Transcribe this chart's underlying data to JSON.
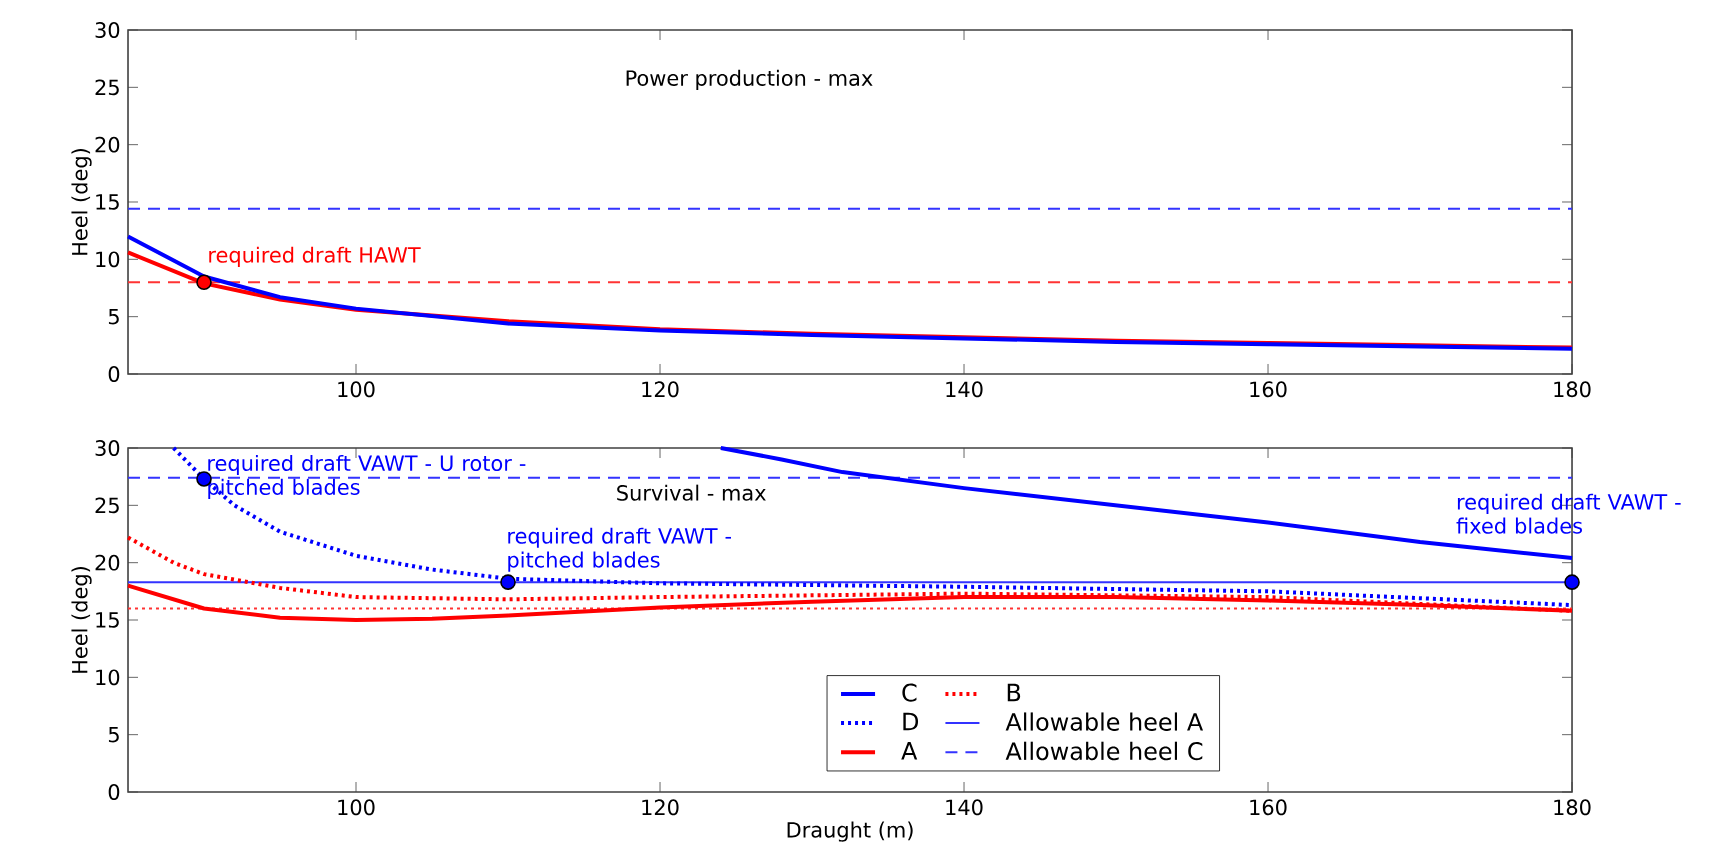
{
  "chart_data": [
    {
      "type": "line",
      "title": "Power production - max",
      "ylabel": "Heel (deg)",
      "xlim": [
        85,
        180
      ],
      "xticks": [
        100,
        120,
        140,
        160,
        180
      ],
      "ylim": [
        0,
        30
      ],
      "yticks": [
        0,
        5,
        10,
        15,
        20,
        25,
        30
      ],
      "grid": false,
      "legend": false,
      "series": [
        {
          "color": "#ff0000",
          "line_style": "solid",
          "x": [
            85,
            90,
            95,
            100,
            110,
            120,
            130,
            140,
            150,
            160,
            170,
            180
          ],
          "values": [
            10.6,
            7.9,
            6.5,
            5.6,
            4.6,
            3.9,
            3.5,
            3.2,
            2.9,
            2.7,
            2.5,
            2.3
          ]
        },
        {
          "color": "#0000ff",
          "line_style": "solid",
          "x": [
            85,
            90,
            95,
            100,
            110,
            120,
            130,
            140,
            150,
            160,
            170,
            180
          ],
          "values": [
            12,
            8.5,
            6.7,
            5.7,
            4.4,
            3.8,
            3.4,
            3.1,
            2.8,
            2.6,
            2.4,
            2.2
          ]
        },
        {
          "type": "scatter",
          "marker": "circle",
          "color": "#ff0000",
          "x": [
            90
          ],
          "values": [
            8
          ]
        }
      ],
      "ref_lines": [
        {
          "axis": "y",
          "value": 14.4,
          "color": "#3333ff",
          "line_style": "dashed"
        },
        {
          "axis": "y",
          "value": 8,
          "color": "#ff3333",
          "line_style": "dashed"
        }
      ],
      "annotations": [
        {
          "text": "required draft HAWT",
          "x": 90,
          "y": 8
        }
      ]
    },
    {
      "type": "line",
      "title": "Survival - max",
      "xlabel": "Draught (m)",
      "ylabel": "Heel (deg)",
      "xlim": [
        85,
        180
      ],
      "xticks": [
        100,
        120,
        140,
        160,
        180
      ],
      "ylim": [
        0,
        30
      ],
      "yticks": [
        0,
        5,
        10,
        15,
        20,
        25,
        30
      ],
      "grid": false,
      "legend": "bottom",
      "series": [
        {
          "name": "C",
          "color": "#0000ff",
          "line_style": "solid",
          "x": [
            124,
            128,
            132,
            140,
            150,
            160,
            170,
            180
          ],
          "values": [
            30,
            29,
            27.9,
            26.5,
            25,
            23.5,
            21.8,
            20.4
          ]
        },
        {
          "name": "D",
          "color": "#0000ff",
          "line_style": "dotted",
          "x": [
            88,
            90,
            92,
            95,
            100,
            105,
            110,
            120,
            140,
            160,
            180
          ],
          "values": [
            30,
            27.3,
            25,
            22.7,
            20.6,
            19.4,
            18.6,
            18.2,
            17.9,
            17.5,
            16.3
          ]
        },
        {
          "name": "A",
          "color": "#ff0000",
          "line_style": "solid",
          "x": [
            85,
            90,
            95,
            100,
            105,
            110,
            120,
            130,
            140,
            150,
            160,
            170,
            180
          ],
          "values": [
            18,
            16,
            15.2,
            15,
            15.1,
            15.4,
            16.1,
            16.6,
            17,
            17,
            16.7,
            16.3,
            15.8
          ]
        },
        {
          "name": "B",
          "color": "#ff0000",
          "line_style": "dotted",
          "x": [
            85,
            88,
            90,
            95,
            100,
            110,
            120,
            140,
            160,
            180
          ],
          "values": [
            22.2,
            20,
            19,
            17.8,
            17,
            16.8,
            17,
            17.3,
            17,
            15.8
          ]
        },
        {
          "type": "scatter",
          "marker": "circle",
          "color": "#0000ff",
          "x": [
            90,
            110,
            180
          ],
          "values": [
            27.3,
            18.3,
            18.3
          ]
        }
      ],
      "ref_lines": [
        {
          "axis": "y",
          "value": 18.3,
          "label": "Allowable heel A",
          "color": "#3333ff",
          "line_style": "solid"
        },
        {
          "axis": "y",
          "value": 27.4,
          "label": "Allowable heel C",
          "color": "#3333ff",
          "line_style": "dashed"
        },
        {
          "axis": "y",
          "value": 16,
          "color": "#ff3333",
          "line_style": "dotted"
        }
      ],
      "annotations": [
        {
          "text": "required draft VAWT - U rotor - pitched blades",
          "x": 90,
          "y": 27.3
        },
        {
          "text": "required draft VAWT - pitched blades",
          "x": 110,
          "y": 18.3
        },
        {
          "text": "required draft VAWT - fixed blades",
          "x": 180,
          "y": 18.3
        }
      ]
    }
  ]
}
